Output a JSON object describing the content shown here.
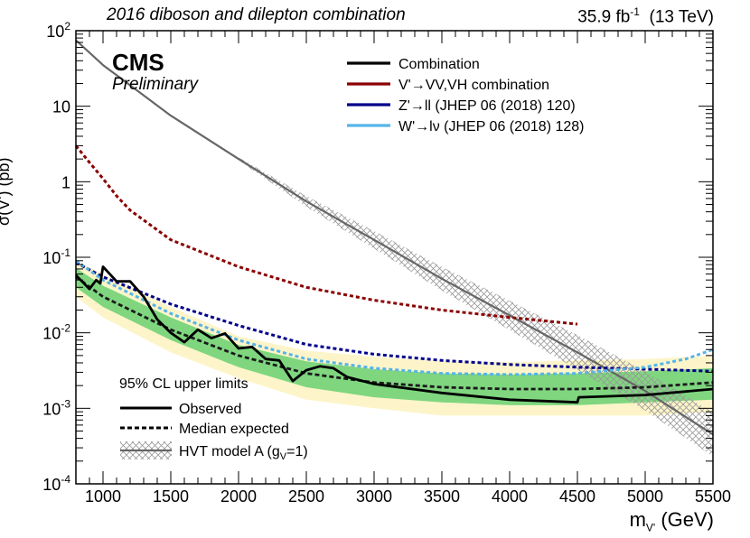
{
  "header": {
    "left_title": "2016 diboson and dilepton combination",
    "lumi": "35.9 fb",
    "lumi_sup": "-1",
    "energy": "(13 TeV)"
  },
  "labels": {
    "experiment": "CMS",
    "status": "Preliminary",
    "ylabel": "σ(V') (pb)",
    "xlabel_main": "m",
    "xlabel_sub": "V'",
    "xlabel_unit": "(GeV)"
  },
  "legend_top": [
    {
      "label": "Combination",
      "color": "#000000"
    },
    {
      "label": "V'→VV,VH combination",
      "color": "#8b0000"
    },
    {
      "label": "Z'→ll (JHEP 06 (2018) 120)",
      "color": "#00008b"
    },
    {
      "label": "W'→lν (JHEP 06 (2018) 128)",
      "color": "#56b4e9"
    }
  ],
  "legend_bottom": {
    "title": "95% CL upper limits",
    "observed": "Observed",
    "expected": "Median expected",
    "model": "HVT model A (g",
    "model_sub": "V",
    "model_end": "=1)"
  },
  "colors": {
    "band1": "#7fd67f",
    "band2": "#fdf5c9",
    "combination": "#000000",
    "vv": "#8b0000",
    "zprime": "#00008b",
    "wprime": "#56b4e9",
    "hvt": "#666666"
  },
  "chart_data": {
    "type": "line",
    "xlim": [
      800,
      5500
    ],
    "ylim": [
      0.0001,
      100
    ],
    "yscale": "log",
    "xticks": [
      1000,
      1500,
      2000,
      2500,
      3000,
      3500,
      4000,
      4500,
      5000,
      5500
    ],
    "yticks": [
      {
        "value": 0.0001,
        "base": "10",
        "exp": "-4"
      },
      {
        "value": 0.001,
        "base": "10",
        "exp": "-3"
      },
      {
        "value": 0.01,
        "base": "10",
        "exp": "-2"
      },
      {
        "value": 0.1,
        "base": "10",
        "exp": "-1"
      },
      {
        "value": 1,
        "base": "1",
        "exp": ""
      },
      {
        "value": 10,
        "base": "10",
        "exp": ""
      },
      {
        "value": 100,
        "base": "10",
        "exp": "2"
      }
    ],
    "series": [
      {
        "name": "HVT model A (gV=1)",
        "style": "hvt",
        "x": [
          800,
          1000,
          1500,
          2000,
          2500,
          3000,
          3500,
          4000,
          4500,
          5000,
          5500
        ],
        "y": [
          75,
          35,
          7.5,
          2.0,
          0.55,
          0.17,
          0.052,
          0.017,
          0.0055,
          0.0017,
          0.00045
        ]
      },
      {
        "name": "V'→VV,VH combination",
        "style": "vv",
        "x": [
          800,
          900,
          1000,
          1100,
          1200,
          1500,
          2000,
          2500,
          3000,
          3500,
          4000,
          4500
        ],
        "y": [
          3.0,
          1.8,
          1.1,
          0.65,
          0.42,
          0.17,
          0.075,
          0.04,
          0.027,
          0.02,
          0.016,
          0.013
        ]
      },
      {
        "name": "Z'→ll",
        "style": "zprime",
        "x": [
          800,
          1000,
          1500,
          2000,
          2500,
          3000,
          3500,
          4000,
          4500,
          5000,
          5500
        ],
        "y": [
          0.085,
          0.055,
          0.024,
          0.0125,
          0.007,
          0.0052,
          0.0043,
          0.0038,
          0.0035,
          0.0033,
          0.0031
        ]
      },
      {
        "name": "W'→lν",
        "style": "wprime",
        "x": [
          800,
          1000,
          1500,
          2000,
          2500,
          3000,
          3500,
          4000,
          4500,
          5000,
          5300,
          5500
        ],
        "y": [
          0.09,
          0.05,
          0.018,
          0.008,
          0.0045,
          0.0034,
          0.0029,
          0.0028,
          0.0029,
          0.0035,
          0.0045,
          0.006
        ]
      },
      {
        "name": "Median expected",
        "style": "expected",
        "x": [
          800,
          1000,
          1500,
          2000,
          2500,
          3000,
          3500,
          4000,
          4500,
          5000,
          5500
        ],
        "y": [
          0.055,
          0.03,
          0.011,
          0.005,
          0.0029,
          0.0022,
          0.0019,
          0.0018,
          0.0018,
          0.0019,
          0.0022
        ]
      },
      {
        "name": "Observed",
        "style": "observed",
        "x": [
          800,
          900,
          950,
          980,
          1000,
          1050,
          1100,
          1200,
          1250,
          1300,
          1400,
          1500,
          1600,
          1700,
          1800,
          1900,
          2000,
          2100,
          2200,
          2300,
          2400,
          2500,
          2600,
          2700,
          2800,
          3000,
          3500,
          4000,
          4500,
          4510,
          5000,
          5500
        ],
        "y": [
          0.058,
          0.038,
          0.05,
          0.045,
          0.075,
          0.06,
          0.048,
          0.048,
          0.038,
          0.03,
          0.015,
          0.01,
          0.0075,
          0.011,
          0.0085,
          0.0098,
          0.0062,
          0.0065,
          0.0045,
          0.0043,
          0.0023,
          0.0032,
          0.0036,
          0.0034,
          0.0026,
          0.0021,
          0.0016,
          0.0013,
          0.0012,
          0.0014,
          0.0015,
          0.0018
        ]
      }
    ],
    "bands": [
      {
        "name": "±2σ expected",
        "style": "band2",
        "x": [
          800,
          1000,
          1500,
          2000,
          2500,
          3000,
          3500,
          4000,
          4500,
          5000,
          5500
        ],
        "lo": [
          0.03,
          0.016,
          0.0055,
          0.0025,
          0.0013,
          0.001,
          0.0008,
          0.0008,
          0.0008,
          0.0008,
          0.0009
        ],
        "hi": [
          0.09,
          0.06,
          0.022,
          0.009,
          0.0058,
          0.0048,
          0.0042,
          0.0041,
          0.0043,
          0.0045,
          0.005
        ]
      },
      {
        "name": "±1σ expected",
        "style": "band1",
        "x": [
          800,
          1000,
          1500,
          2000,
          2500,
          3000,
          3500,
          4000,
          4500,
          5000,
          5500
        ],
        "lo": [
          0.04,
          0.022,
          0.008,
          0.0035,
          0.0019,
          0.0014,
          0.0012,
          0.0011,
          0.0011,
          0.0012,
          0.0013
        ],
        "hi": [
          0.072,
          0.042,
          0.016,
          0.0069,
          0.0042,
          0.0033,
          0.0029,
          0.0028,
          0.0029,
          0.0031,
          0.0034
        ]
      }
    ]
  }
}
